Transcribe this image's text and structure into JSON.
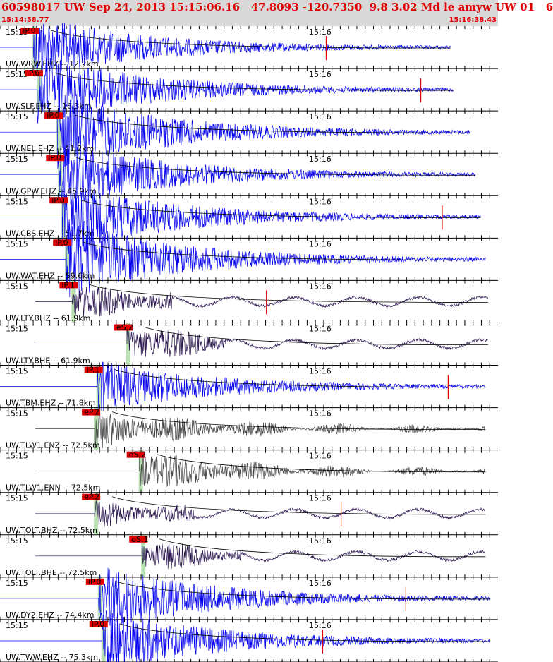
{
  "header": {
    "title": "60598017 UW Sep 24, 2013 15:15:06.16   47.8093 -120.7350  9.8 3.02 Md le amyw UW 01   6",
    "start_time": "15:14:58.77",
    "end_time": "15:16:38.43"
  },
  "colors": {
    "header_bg": "#d9d9d9",
    "header_text": "#e00000",
    "vertical": "#0000ee",
    "horizontal": "#2a1550",
    "enz": "#444444",
    "marker": "#e00000",
    "window": "#b8e0b0"
  },
  "chart_data": {
    "type": "line",
    "title": "",
    "x_axis": {
      "start": "15:14:58.77",
      "end": "15:16:38.43",
      "tick_labels": [
        "15:15",
        "15:16"
      ]
    },
    "traces": [
      {
        "label": "UW.WRW.EHZ -- 12.2km",
        "pick": "iP.0",
        "component": "Z",
        "onset": 0.067,
        "end": 0.905,
        "amp": 1.5,
        "pick_x": 0.655
      },
      {
        "label": "UW.SLF.EHZ -- 16.3km",
        "pick": "iP.0",
        "component": "Z",
        "onset": 0.075,
        "end": 0.91,
        "amp": 1.7,
        "pick_x": 0.845
      },
      {
        "label": "UW.NEL.EHZ -- 41.2km",
        "pick": "iP.0",
        "component": "Z",
        "onset": 0.115,
        "end": 0.945,
        "amp": 1.8,
        "pick_x": null
      },
      {
        "label": "UW.GPW.EHZ -- 45.9km",
        "pick": "iP.0",
        "component": "Z",
        "onset": 0.118,
        "end": 0.955,
        "amp": 1.6,
        "pick_x": null
      },
      {
        "label": "UW.CBS.EHZ -- 51.7km",
        "pick": "iP.0",
        "component": "Z",
        "onset": 0.125,
        "end": 0.965,
        "amp": 1.7,
        "pick_x": 0.888
      },
      {
        "label": "UW.WAT.EHZ -- 59.6km",
        "pick": "iP.0",
        "component": "Z",
        "onset": 0.132,
        "end": 0.975,
        "amp": 1.9,
        "pick_x": null
      },
      {
        "label": "UW.LTY.BHZ -- 61.9km",
        "pick": "iP.1",
        "component": "H",
        "onset": 0.145,
        "end": 0.98,
        "amp": 0.8,
        "pick_x": 0.535
      },
      {
        "label": "UW.LTY.BHE -- 61.9km",
        "pick": "eS.2",
        "component": "H",
        "onset": 0.255,
        "end": 0.98,
        "amp": 0.9,
        "pick_x": null
      },
      {
        "label": "UW.TBM.EHZ -- 71.8km",
        "pick": "iP.1",
        "component": "Z",
        "onset": 0.195,
        "end": 0.975,
        "amp": 1.2,
        "pick_x": 0.9
      },
      {
        "label": "UW.TLW1.ENZ -- 72.5km",
        "pick": "eP.2",
        "component": "N",
        "onset": 0.19,
        "end": 0.975,
        "amp": 0.9,
        "pick_x": null
      },
      {
        "label": "UW.TLW1.ENN -- 72.5km",
        "pick": "eS.2",
        "component": "N",
        "onset": 0.28,
        "end": 0.975,
        "amp": 0.9,
        "pick_x": null
      },
      {
        "label": "UW.TOLT.BHZ -- 72.5km",
        "pick": "eP.2",
        "component": "H",
        "onset": 0.19,
        "end": 0.975,
        "amp": 0.6,
        "pick_x": 0.685
      },
      {
        "label": "UW.TOLT.BHE -- 72.5km",
        "pick": "eS.1",
        "component": "H",
        "onset": 0.285,
        "end": 0.975,
        "amp": 0.7,
        "pick_x": null
      },
      {
        "label": "UW.DY2.EHZ -- 74.4km",
        "pick": "iP.0",
        "component": "Z",
        "onset": 0.198,
        "end": 0.985,
        "amp": 1.6,
        "pick_x": 0.815
      },
      {
        "label": "UW.TWW.EHZ -- 75.3km",
        "pick": "iP.0",
        "component": "Z",
        "onset": 0.205,
        "end": 0.985,
        "amp": 1.5,
        "pick_x": 0.648
      }
    ]
  }
}
